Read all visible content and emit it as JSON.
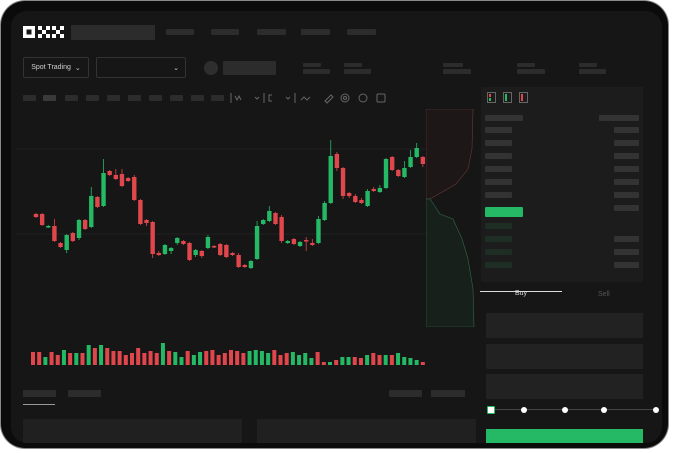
{
  "header": {
    "logo": "OKX",
    "nav_items": [
      "",
      "",
      "",
      "",
      ""
    ]
  },
  "toolbar": {
    "market_type": "Spot Trading",
    "pair_select": "",
    "icons": [
      "indicator-icon",
      "chart-type-icon",
      "formula-icon",
      "line-tool-icon",
      "ruler-icon",
      "target-icon",
      "circle-icon",
      "expand-icon"
    ]
  },
  "orderbook": {
    "view_icons": [
      "both-sides-icon",
      "bids-only-icon",
      "asks-only-icon"
    ],
    "colors": {
      "bid": "#25b865",
      "ask": "#e0474c"
    }
  },
  "order_form": {
    "tabs": [
      "Buy",
      "Sell"
    ],
    "active_tab": "Buy",
    "slider_steps": [
      0,
      25,
      50,
      75,
      100
    ],
    "slider_value": 0
  },
  "colors": {
    "up": "#25b865",
    "down": "#e0474c",
    "background": "#161616"
  },
  "chart_data": {
    "type": "candlestick",
    "candles": [
      {
        "o": 97,
        "c": 94,
        "h": 98,
        "l": 93
      },
      {
        "o": 97,
        "c": 86,
        "h": 98,
        "l": 85
      },
      {
        "o": 84,
        "c": 85,
        "h": 86,
        "l": 83
      },
      {
        "o": 85,
        "c": 70,
        "h": 92,
        "l": 69
      },
      {
        "o": 68,
        "c": 64,
        "h": 69,
        "l": 63
      },
      {
        "o": 61,
        "c": 76,
        "h": 77,
        "l": 58
      },
      {
        "o": 78,
        "c": 70,
        "h": 79,
        "l": 69
      },
      {
        "o": 73,
        "c": 91,
        "h": 92,
        "l": 71
      },
      {
        "o": 91,
        "c": 82,
        "h": 92,
        "l": 81
      },
      {
        "o": 84,
        "c": 115,
        "h": 124,
        "l": 83
      },
      {
        "o": 114,
        "c": 104,
        "h": 115,
        "l": 103
      },
      {
        "o": 105,
        "c": 138,
        "h": 152,
        "l": 104
      },
      {
        "o": 140,
        "c": 136,
        "h": 141,
        "l": 135
      },
      {
        "o": 136,
        "c": 132,
        "h": 142,
        "l": 131
      },
      {
        "o": 137,
        "c": 125,
        "h": 142,
        "l": 124
      },
      {
        "o": 133,
        "c": 130,
        "h": 134,
        "l": 129
      },
      {
        "o": 134,
        "c": 111,
        "h": 136,
        "l": 110
      },
      {
        "o": 111,
        "c": 87,
        "h": 112,
        "l": 86
      },
      {
        "o": 91,
        "c": 88,
        "h": 92,
        "l": 85
      },
      {
        "o": 89,
        "c": 57,
        "h": 90,
        "l": 53
      },
      {
        "o": 58,
        "c": 56,
        "h": 60,
        "l": 55
      },
      {
        "o": 57,
        "c": 66,
        "h": 67,
        "l": 56
      },
      {
        "o": 60,
        "c": 63,
        "h": 64,
        "l": 57
      },
      {
        "o": 68,
        "c": 73,
        "h": 74,
        "l": 66
      },
      {
        "o": 70,
        "c": 67,
        "h": 71,
        "l": 66
      },
      {
        "o": 68,
        "c": 51,
        "h": 69,
        "l": 50
      },
      {
        "o": 56,
        "c": 61,
        "h": 62,
        "l": 54
      },
      {
        "o": 60,
        "c": 55,
        "h": 61,
        "l": 53
      },
      {
        "o": 63,
        "c": 74,
        "h": 76,
        "l": 62
      },
      {
        "o": 65,
        "c": 64,
        "h": 66,
        "l": 63
      },
      {
        "o": 67,
        "c": 56,
        "h": 68,
        "l": 55
      },
      {
        "o": 66,
        "c": 54,
        "h": 67,
        "l": 53
      },
      {
        "o": 58,
        "c": 56,
        "h": 59,
        "l": 55
      },
      {
        "o": 56,
        "c": 44,
        "h": 58,
        "l": 43
      },
      {
        "o": 46,
        "c": 44,
        "h": 47,
        "l": 43
      },
      {
        "o": 43,
        "c": 50,
        "h": 51,
        "l": 42
      },
      {
        "o": 52,
        "c": 85,
        "h": 90,
        "l": 51
      },
      {
        "o": 87,
        "c": 91,
        "h": 92,
        "l": 86
      },
      {
        "o": 90,
        "c": 100,
        "h": 105,
        "l": 89
      },
      {
        "o": 98,
        "c": 87,
        "h": 99,
        "l": 86
      },
      {
        "o": 94,
        "c": 70,
        "h": 96,
        "l": 68
      },
      {
        "o": 68,
        "c": 70,
        "h": 71,
        "l": 67
      },
      {
        "o": 72,
        "c": 67,
        "h": 73,
        "l": 66
      },
      {
        "o": 65,
        "c": 69,
        "h": 70,
        "l": 64
      },
      {
        "o": 71,
        "c": 70,
        "h": 74,
        "l": 60
      },
      {
        "o": 68,
        "c": 66,
        "h": 72,
        "l": 65
      },
      {
        "o": 68,
        "c": 92,
        "h": 95,
        "l": 67
      },
      {
        "o": 91,
        "c": 108,
        "h": 110,
        "l": 90
      },
      {
        "o": 108,
        "c": 155,
        "h": 171,
        "l": 107
      },
      {
        "o": 157,
        "c": 143,
        "h": 159,
        "l": 140
      },
      {
        "o": 143,
        "c": 115,
        "h": 144,
        "l": 112
      },
      {
        "o": 118,
        "c": 115,
        "h": 119,
        "l": 113
      },
      {
        "o": 115,
        "c": 109,
        "h": 117,
        "l": 108
      },
      {
        "o": 111,
        "c": 108,
        "h": 113,
        "l": 107
      },
      {
        "o": 105,
        "c": 120,
        "h": 122,
        "l": 104
      },
      {
        "o": 122,
        "c": 120,
        "h": 124,
        "l": 119
      },
      {
        "o": 119,
        "c": 123,
        "h": 126,
        "l": 118
      },
      {
        "o": 123,
        "c": 152,
        "h": 153,
        "l": 122
      },
      {
        "o": 154,
        "c": 141,
        "h": 155,
        "l": 140
      },
      {
        "o": 141,
        "c": 135,
        "h": 142,
        "l": 134
      },
      {
        "o": 134,
        "c": 143,
        "h": 150,
        "l": 133
      },
      {
        "o": 144,
        "c": 154,
        "h": 161,
        "l": 143
      },
      {
        "o": 154,
        "c": 163,
        "h": 168,
        "l": 153
      },
      {
        "o": 154,
        "c": 147,
        "h": 155,
        "l": 144
      },
      {
        "o": 149,
        "c": 156,
        "h": 161,
        "l": 148
      }
    ],
    "volume": [
      {
        "v": 13,
        "up": false
      },
      {
        "v": 13,
        "up": false
      },
      {
        "v": 8,
        "up": true
      },
      {
        "v": 13,
        "up": false
      },
      {
        "v": 10,
        "up": false
      },
      {
        "v": 15,
        "up": true
      },
      {
        "v": 12,
        "up": false
      },
      {
        "v": 12,
        "up": true
      },
      {
        "v": 12,
        "up": false
      },
      {
        "v": 20,
        "up": true
      },
      {
        "v": 17,
        "up": false
      },
      {
        "v": 20,
        "up": true
      },
      {
        "v": 17,
        "up": false
      },
      {
        "v": 14,
        "up": false
      },
      {
        "v": 14,
        "up": false
      },
      {
        "v": 10,
        "up": false
      },
      {
        "v": 12,
        "up": false
      },
      {
        "v": 17,
        "up": false
      },
      {
        "v": 12,
        "up": false
      },
      {
        "v": 14,
        "up": false
      },
      {
        "v": 12,
        "up": false
      },
      {
        "v": 22,
        "up": true
      },
      {
        "v": 14,
        "up": false
      },
      {
        "v": 13,
        "up": true
      },
      {
        "v": 8,
        "up": true
      },
      {
        "v": 14,
        "up": false
      },
      {
        "v": 10,
        "up": true
      },
      {
        "v": 13,
        "up": true
      },
      {
        "v": 14,
        "up": false
      },
      {
        "v": 15,
        "up": false
      },
      {
        "v": 10,
        "up": false
      },
      {
        "v": 12,
        "up": false
      },
      {
        "v": 15,
        "up": false
      },
      {
        "v": 14,
        "up": false
      },
      {
        "v": 12,
        "up": false
      },
      {
        "v": 14,
        "up": true
      },
      {
        "v": 15,
        "up": true
      },
      {
        "v": 14,
        "up": true
      },
      {
        "v": 12,
        "up": true
      },
      {
        "v": 15,
        "up": false
      },
      {
        "v": 10,
        "up": false
      },
      {
        "v": 12,
        "up": false
      },
      {
        "v": 13,
        "up": true
      },
      {
        "v": 10,
        "up": true
      },
      {
        "v": 12,
        "up": true
      },
      {
        "v": 7,
        "up": true
      },
      {
        "v": 13,
        "up": false
      },
      {
        "v": 3,
        "up": false
      },
      {
        "v": 3,
        "up": true
      },
      {
        "v": 5,
        "up": false
      },
      {
        "v": 8,
        "up": true
      },
      {
        "v": 8,
        "up": true
      },
      {
        "v": 8,
        "up": false
      },
      {
        "v": 7,
        "up": false
      },
      {
        "v": 10,
        "up": true
      },
      {
        "v": 12,
        "up": false
      },
      {
        "v": 10,
        "up": false
      },
      {
        "v": 10,
        "up": true
      },
      {
        "v": 10,
        "up": false
      },
      {
        "v": 12,
        "up": true
      },
      {
        "v": 8,
        "up": true
      },
      {
        "v": 7,
        "up": true
      },
      {
        "v": 5,
        "up": true
      },
      {
        "v": 3,
        "up": false
      },
      {
        "v": 5,
        "up": true
      }
    ]
  }
}
